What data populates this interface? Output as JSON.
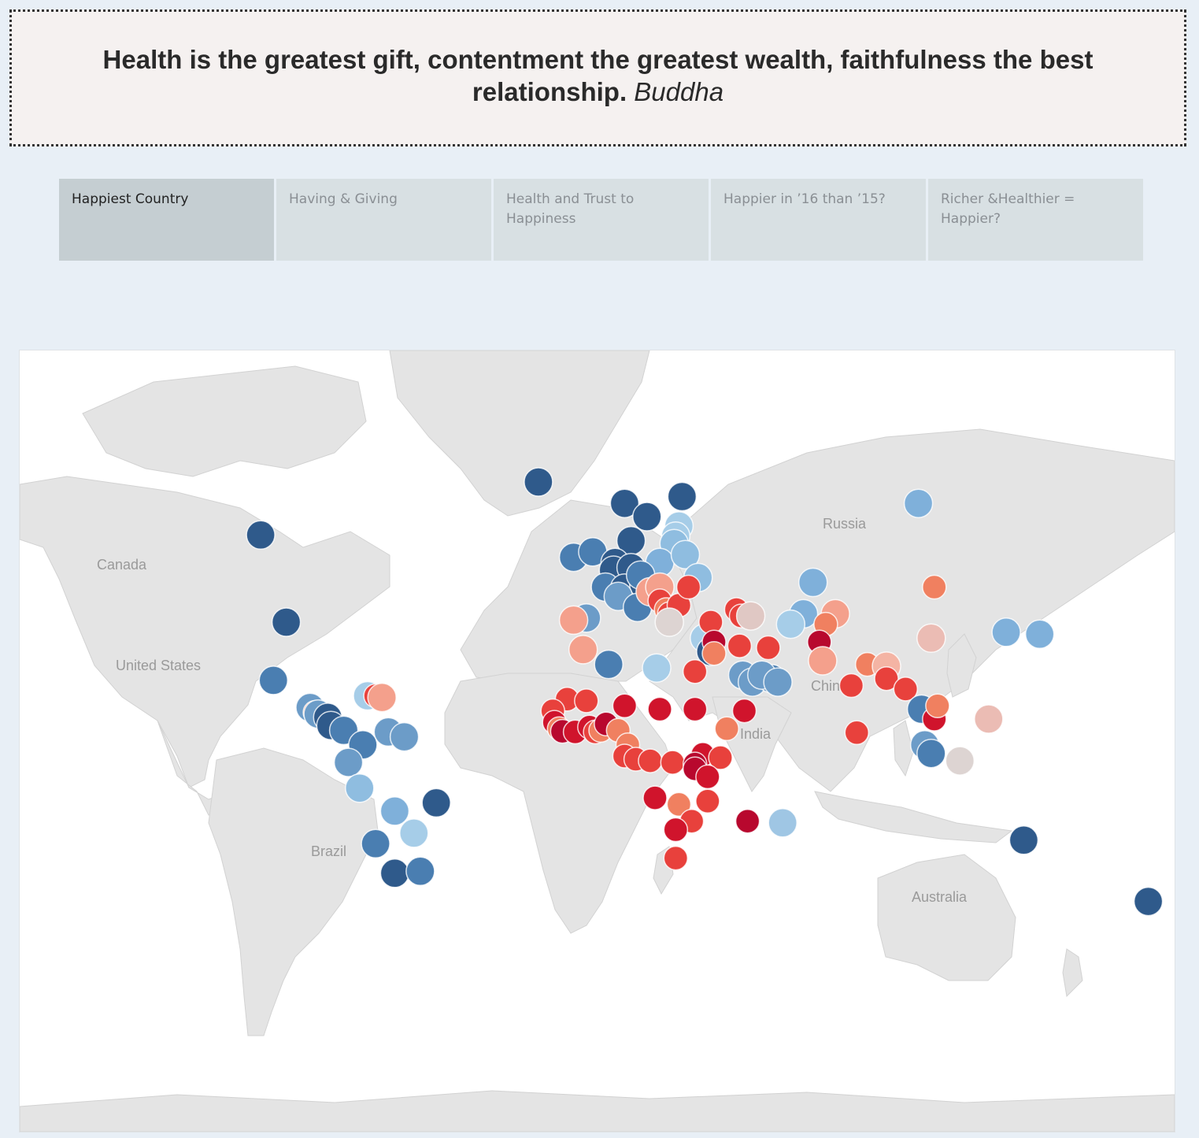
{
  "quote": {
    "text": "Health is the greatest gift, contentment the greatest wealth, faithfulness the best relationship.",
    "author": "Buddha"
  },
  "tabs": [
    {
      "label": "Happiest Country",
      "active": true
    },
    {
      "label": "Having & Giving",
      "active": false
    },
    {
      "label": "Health and Trust to Happiness",
      "active": false
    },
    {
      "label": "Happier in ’16 than ’15?",
      "active": false
    },
    {
      "label": "Richer &Healthier = Happier?",
      "active": false
    }
  ],
  "map": {
    "labels": {
      "canada": "Canada",
      "us": "United States",
      "brazil": "Brazil",
      "russia": "Russia",
      "china": "China",
      "india": "India",
      "australia": "Australia"
    },
    "color_scale": {
      "high": "#2c5a8c",
      "mid_high": "#6c9cc8",
      "light_blue": "#9fc6e4",
      "neutral": "#ddd4d2",
      "light_red": "#f4a08c",
      "mid_red": "#e8413c",
      "low": "#b8082e"
    },
    "points": [
      {
        "lon": -106,
        "lat": 57,
        "c": "#2f5a8b"
      },
      {
        "lon": -98,
        "lat": 39,
        "c": "#2f5a8b"
      },
      {
        "lon": -19,
        "lat": 65,
        "c": "#2f5a8b"
      },
      {
        "lon": 8,
        "lat": 62,
        "c": "#2f5a8b"
      },
      {
        "lon": 15,
        "lat": 60,
        "c": "#2f5a8b"
      },
      {
        "lon": 26,
        "lat": 63,
        "c": "#2f5a8b"
      },
      {
        "lon": 10,
        "lat": 56,
        "c": "#2f5a8b"
      },
      {
        "lon": 25,
        "lat": 58.5,
        "c": "#a6cde8"
      },
      {
        "lon": 24,
        "lat": 56.8,
        "c": "#a6cde8"
      },
      {
        "lon": 23.5,
        "lat": 55.5,
        "c": "#8fbde0"
      },
      {
        "lon": 19,
        "lat": 52,
        "c": "#7fb0da"
      },
      {
        "lon": 27,
        "lat": 53.5,
        "c": "#8fbde0"
      },
      {
        "lon": -8,
        "lat": 53,
        "c": "#4a7eb1"
      },
      {
        "lon": -2,
        "lat": 54,
        "c": "#4a7eb1"
      },
      {
        "lon": 5,
        "lat": 52,
        "c": "#2f5a8b"
      },
      {
        "lon": 4.5,
        "lat": 50.5,
        "c": "#2f5a8b"
      },
      {
        "lon": 10,
        "lat": 51,
        "c": "#2f5a8b"
      },
      {
        "lon": 2,
        "lat": 47,
        "c": "#4a7eb1"
      },
      {
        "lon": 8,
        "lat": 46.8,
        "c": "#2f5a8b"
      },
      {
        "lon": 14,
        "lat": 47.5,
        "c": "#2f5a8b"
      },
      {
        "lon": 13,
        "lat": 49.5,
        "c": "#4a7eb1"
      },
      {
        "lon": 6,
        "lat": 45,
        "c": "#6c9cc8"
      },
      {
        "lon": 12,
        "lat": 42.5,
        "c": "#4a7eb1"
      },
      {
        "lon": 16,
        "lat": 46,
        "c": "#f4a08c"
      },
      {
        "lon": 19,
        "lat": 47,
        "c": "#f4a08c"
      },
      {
        "lon": 19,
        "lat": 44,
        "c": "#e8413c"
      },
      {
        "lon": 21,
        "lat": 42,
        "c": "#f08060"
      },
      {
        "lon": 22,
        "lat": 41,
        "c": "#e8413c"
      },
      {
        "lon": 25,
        "lat": 43,
        "c": "#e8413c"
      },
      {
        "lon": 31,
        "lat": 49,
        "c": "#8fbde0"
      },
      {
        "lon": 28,
        "lat": 47,
        "c": "#e8413c"
      },
      {
        "lon": -4,
        "lat": 40,
        "c": "#6c9cc8"
      },
      {
        "lon": -8,
        "lat": 39.5,
        "c": "#f4a08c"
      },
      {
        "lon": 22,
        "lat": 39,
        "c": "#ddd4d2"
      },
      {
        "lon": 33,
        "lat": 35,
        "c": "#a6cde8"
      },
      {
        "lon": 35,
        "lat": 39,
        "c": "#e8413c"
      },
      {
        "lon": 43,
        "lat": 42,
        "c": "#e8413c"
      },
      {
        "lon": 44.5,
        "lat": 40.5,
        "c": "#e8413c"
      },
      {
        "lon": 47.5,
        "lat": 40.5,
        "c": "#e0c8c4"
      },
      {
        "lon": 35,
        "lat": 31.5,
        "c": "#2f5a8b"
      },
      {
        "lon": 36,
        "lat": 34,
        "c": "#b8082e"
      },
      {
        "lon": 36,
        "lat": 31,
        "c": "#f08060"
      },
      {
        "lon": 44,
        "lat": 33,
        "c": "#e8413c"
      },
      {
        "lon": 53,
        "lat": 32.5,
        "c": "#e8413c"
      },
      {
        "lon": 45,
        "lat": 25,
        "c": "#6c9cc8"
      },
      {
        "lon": 48,
        "lat": 23,
        "c": "#6c9cc8"
      },
      {
        "lon": 54,
        "lat": 24,
        "c": "#4a7eb1"
      },
      {
        "lon": 51,
        "lat": 25,
        "c": "#6c9cc8"
      },
      {
        "lon": 56,
        "lat": 23,
        "c": "#6c9cc8"
      },
      {
        "lon": 67,
        "lat": 48,
        "c": "#7fb0da"
      },
      {
        "lon": 64,
        "lat": 41,
        "c": "#7fb0da"
      },
      {
        "lon": 60,
        "lat": 38.5,
        "c": "#a6cde8"
      },
      {
        "lon": 74,
        "lat": 41,
        "c": "#f4a08c"
      },
      {
        "lon": 71,
        "lat": 38.5,
        "c": "#f08060"
      },
      {
        "lon": 69,
        "lat": 34,
        "c": "#b8082e"
      },
      {
        "lon": 70,
        "lat": 29,
        "c": "#f4a08c"
      },
      {
        "lon": 79,
        "lat": 22,
        "c": "#e8413c"
      },
      {
        "lon": 84,
        "lat": 28,
        "c": "#f08060"
      },
      {
        "lon": 90,
        "lat": 27.5,
        "c": "#f4b4a4"
      },
      {
        "lon": 90,
        "lat": 24,
        "c": "#e8413c"
      },
      {
        "lon": 80.7,
        "lat": 7.8,
        "c": "#e8413c"
      },
      {
        "lon": 96,
        "lat": 21,
        "c": "#e8413c"
      },
      {
        "lon": 105,
        "lat": 47,
        "c": "#f08060"
      },
      {
        "lon": 104,
        "lat": 35,
        "c": "#ebbcb4"
      },
      {
        "lon": 101,
        "lat": 15,
        "c": "#4a7eb1"
      },
      {
        "lon": 105,
        "lat": 12,
        "c": "#d0142c"
      },
      {
        "lon": 106,
        "lat": 16,
        "c": "#f08060"
      },
      {
        "lon": 102,
        "lat": 4,
        "c": "#6c9cc8"
      },
      {
        "lon": 104,
        "lat": 1.3,
        "c": "#4a7eb1"
      },
      {
        "lon": 113,
        "lat": -1,
        "c": "#ddd4d2"
      },
      {
        "lon": 122,
        "lat": 12,
        "c": "#ebbcb4"
      },
      {
        "lon": 127.5,
        "lat": 36.5,
        "c": "#7fb0da"
      },
      {
        "lon": 138,
        "lat": 36,
        "c": "#7fb0da"
      },
      {
        "lon": 100,
        "lat": 62,
        "c": "#7fb0da"
      },
      {
        "lon": 133,
        "lat": -25,
        "c": "#2f5a8b"
      },
      {
        "lon": 172,
        "lat": -41,
        "c": "#2f5a8b"
      },
      {
        "lon": -102,
        "lat": 23.5,
        "c": "#4a7eb1"
      },
      {
        "lon": -90.5,
        "lat": 15.5,
        "c": "#6c9cc8"
      },
      {
        "lon": -89,
        "lat": 14,
        "c": "#f08060"
      },
      {
        "lon": -88,
        "lat": 13.5,
        "c": "#6c9cc8"
      },
      {
        "lon": -85,
        "lat": 12.5,
        "c": "#2f5a8b"
      },
      {
        "lon": -84,
        "lat": 10,
        "c": "#2f5a8b"
      },
      {
        "lon": -80,
        "lat": 8.5,
        "c": "#4a7eb1"
      },
      {
        "lon": -72.5,
        "lat": 19,
        "c": "#a6cde8"
      },
      {
        "lon": -70,
        "lat": 19,
        "c": "#e8413c"
      },
      {
        "lon": -68,
        "lat": 18.5,
        "c": "#f4a08c"
      },
      {
        "lon": -66,
        "lat": 8,
        "c": "#6c9cc8"
      },
      {
        "lon": -74,
        "lat": 4,
        "c": "#4a7eb1"
      },
      {
        "lon": -78.5,
        "lat": -1.5,
        "c": "#6c9cc8"
      },
      {
        "lon": -61,
        "lat": 6.5,
        "c": "#6c9cc8"
      },
      {
        "lon": -75,
        "lat": -9.5,
        "c": "#8fbde0"
      },
      {
        "lon": -64,
        "lat": -16.5,
        "c": "#7fb0da"
      },
      {
        "lon": -51,
        "lat": -14,
        "c": "#2f5a8b"
      },
      {
        "lon": -70,
        "lat": -26,
        "c": "#4a7eb1"
      },
      {
        "lon": -58,
        "lat": -23,
        "c": "#a6cde8"
      },
      {
        "lon": -64,
        "lat": -34,
        "c": "#2f5a8b"
      },
      {
        "lon": -56,
        "lat": -33.5,
        "c": "#4a7eb1"
      },
      {
        "lon": -5,
        "lat": 32,
        "c": "#f4a08c"
      },
      {
        "lon": 3,
        "lat": 28,
        "c": "#4a7eb1"
      },
      {
        "lon": 18,
        "lat": 27,
        "c": "#a6cde8"
      },
      {
        "lon": 30,
        "lat": 26,
        "c": "#e8413c"
      },
      {
        "lon": -10,
        "lat": 18,
        "c": "#e8413c"
      },
      {
        "lon": -4,
        "lat": 17.5,
        "c": "#e8413c"
      },
      {
        "lon": 8,
        "lat": 16,
        "c": "#d0142c"
      },
      {
        "lon": 19,
        "lat": 15,
        "c": "#d0142c"
      },
      {
        "lon": 30,
        "lat": 15,
        "c": "#d0142c"
      },
      {
        "lon": 40,
        "lat": 9,
        "c": "#f08060"
      },
      {
        "lon": 45.5,
        "lat": 14.5,
        "c": "#d0142c"
      },
      {
        "lon": -14.5,
        "lat": 14.5,
        "c": "#e8413c"
      },
      {
        "lon": -14,
        "lat": 11,
        "c": "#d0142c"
      },
      {
        "lon": -12.5,
        "lat": 9,
        "c": "#f08060"
      },
      {
        "lon": -11.5,
        "lat": 8.2,
        "c": "#b8082e"
      },
      {
        "lon": -7.5,
        "lat": 8,
        "c": "#d0142c"
      },
      {
        "lon": -3,
        "lat": 9.5,
        "c": "#d0142c"
      },
      {
        "lon": -1.2,
        "lat": 8,
        "c": "#e8413c"
      },
      {
        "lon": 0.5,
        "lat": 8.5,
        "c": "#f08060"
      },
      {
        "lon": 2.2,
        "lat": 10.5,
        "c": "#b8082e"
      },
      {
        "lon": 6,
        "lat": 8.5,
        "c": "#f08060"
      },
      {
        "lon": 9,
        "lat": 4,
        "c": "#f08060"
      },
      {
        "lon": 8,
        "lat": 0.5,
        "c": "#e8413c"
      },
      {
        "lon": 11.5,
        "lat": -0.5,
        "c": "#e8413c"
      },
      {
        "lon": 16,
        "lat": -1,
        "c": "#e8413c"
      },
      {
        "lon": 23,
        "lat": -1.5,
        "c": "#e8413c"
      },
      {
        "lon": 32.5,
        "lat": 1,
        "c": "#d0142c"
      },
      {
        "lon": 38,
        "lat": 0,
        "c": "#e8413c"
      },
      {
        "lon": 30,
        "lat": -2,
        "c": "#b8082e"
      },
      {
        "lon": 30,
        "lat": -3.5,
        "c": "#b8082e"
      },
      {
        "lon": 34,
        "lat": -6,
        "c": "#d0142c"
      },
      {
        "lon": 17.5,
        "lat": -12.5,
        "c": "#d0142c"
      },
      {
        "lon": 25,
        "lat": -14.5,
        "c": "#f08060"
      },
      {
        "lon": 34,
        "lat": -13.5,
        "c": "#e8413c"
      },
      {
        "lon": 29,
        "lat": -19.5,
        "c": "#e8413c"
      },
      {
        "lon": 24,
        "lat": -22,
        "c": "#d0142c"
      },
      {
        "lon": 24,
        "lat": -30,
        "c": "#e8413c"
      },
      {
        "lon": 46.5,
        "lat": -19.5,
        "c": "#b8082e"
      },
      {
        "lon": 57.5,
        "lat": -20,
        "c": "#9fc6e4"
      }
    ]
  }
}
